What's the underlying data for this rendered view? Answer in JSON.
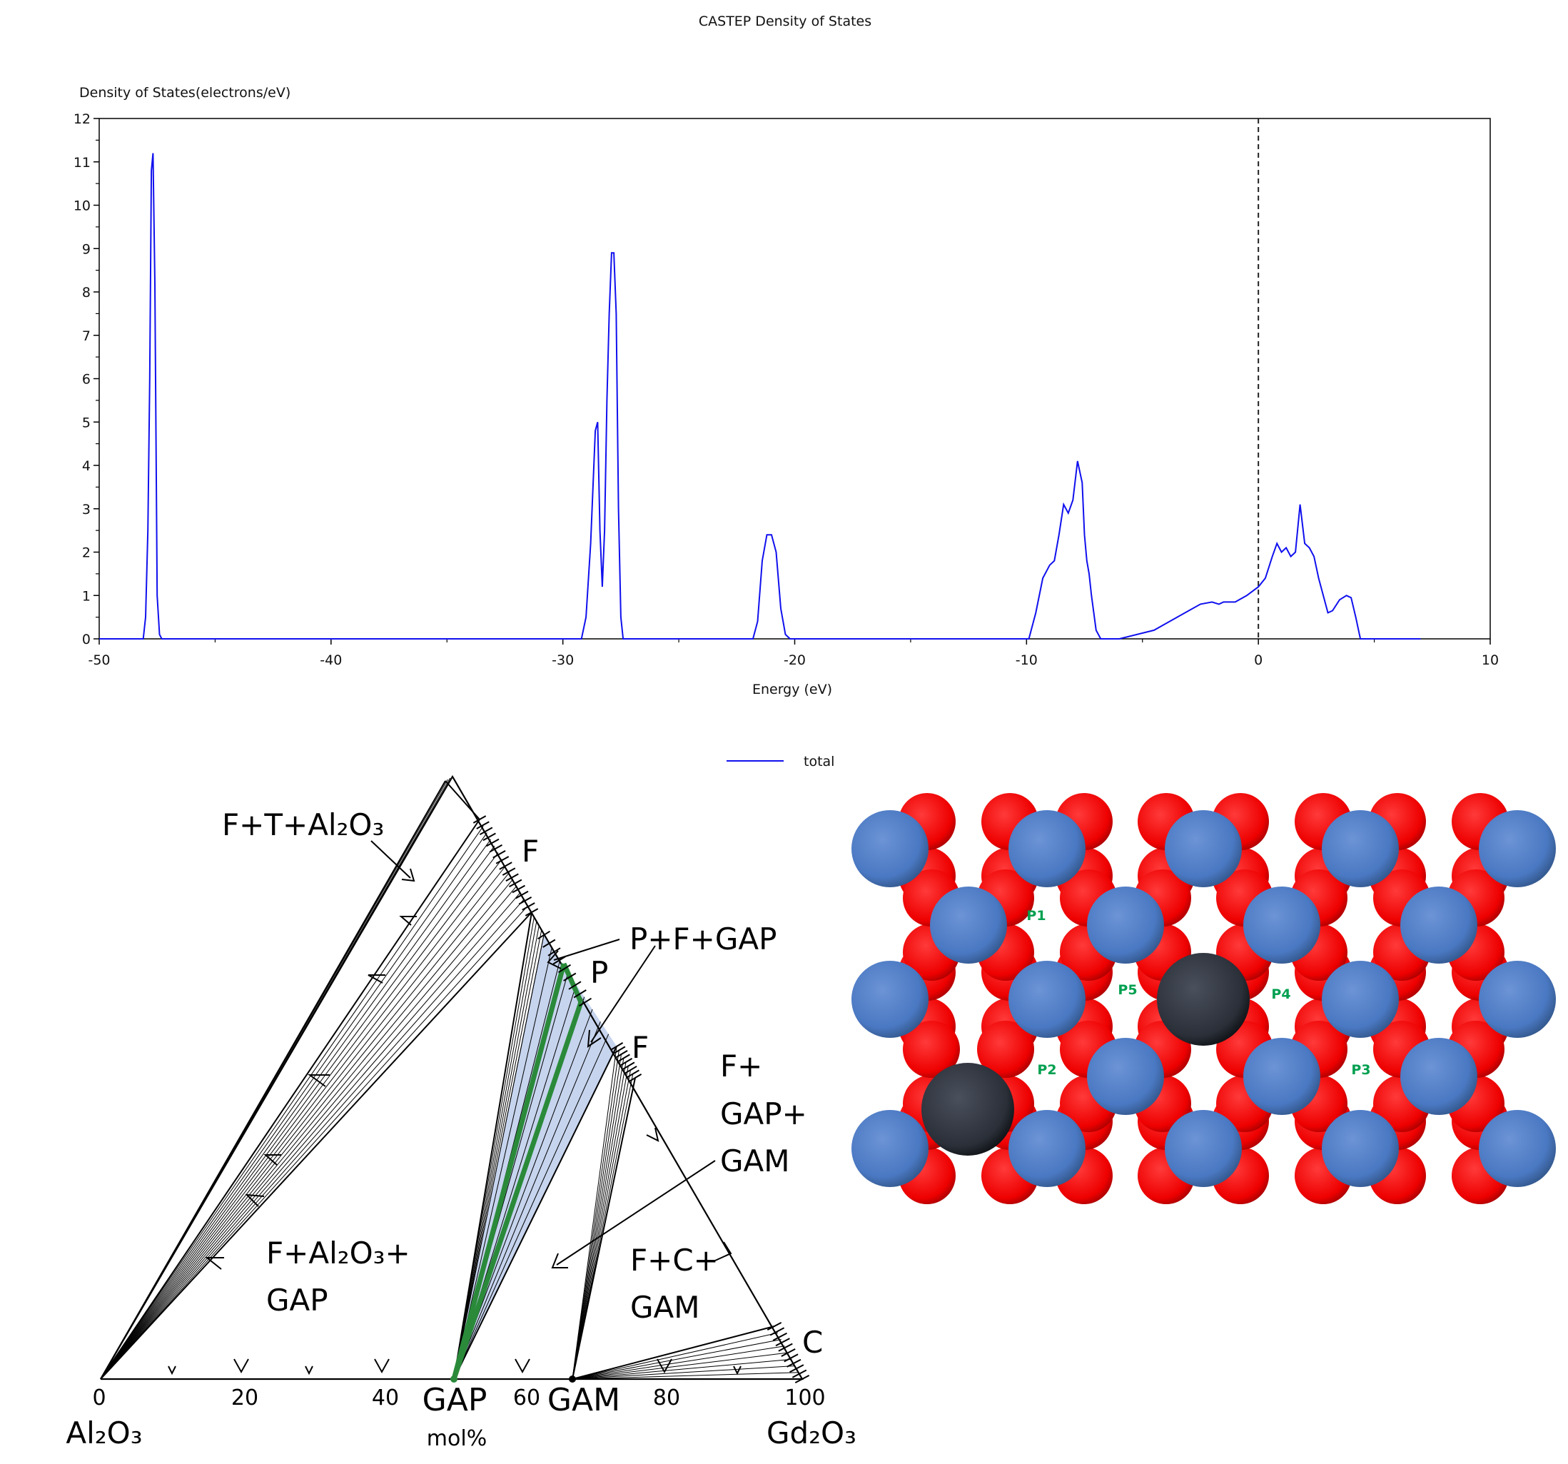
{
  "dos": {
    "title": "CASTEP Density of States",
    "ylabel": "Density of States(electrons/eV)",
    "xlabel": "Energy (eV)",
    "legend_label": "total",
    "fermi_energy": 0,
    "line_color": "#1010ee"
  },
  "chart_data": [
    {
      "type": "line",
      "title": "CASTEP Density of States",
      "xlabel": "Energy (eV)",
      "ylabel": "Density of States(electrons/eV)",
      "xlim": [
        -50,
        10
      ],
      "ylim": [
        0,
        12
      ],
      "xticks": [
        -50,
        -40,
        -30,
        -20,
        -10,
        0,
        10
      ],
      "yticks": [
        0,
        1,
        2,
        3,
        4,
        5,
        6,
        7,
        8,
        9,
        10,
        11,
        12
      ],
      "legend": "bottom-center",
      "series": [
        {
          "name": "total",
          "x": [
            -50,
            -48.1,
            -48.0,
            -47.9,
            -47.82,
            -47.75,
            -47.68,
            -47.6,
            -47.5,
            -47.4,
            -47.3,
            -47.0,
            -29.2,
            -29.0,
            -28.8,
            -28.6,
            -28.5,
            -28.4,
            -28.3,
            -28.2,
            -28.1,
            -28.0,
            -27.9,
            -27.8,
            -27.7,
            -27.6,
            -27.5,
            -27.4,
            -27.3,
            -27.2,
            -27.0,
            -21.8,
            -21.6,
            -21.4,
            -21.2,
            -21.0,
            -20.8,
            -20.6,
            -20.4,
            -20.2,
            -20.0,
            -9.9,
            -9.6,
            -9.3,
            -9.0,
            -8.8,
            -8.6,
            -8.4,
            -8.2,
            -8.0,
            -7.8,
            -7.6,
            -7.5,
            -7.4,
            -7.3,
            -7.2,
            -7.0,
            -6.8,
            -6.6,
            -6.4,
            -6.2,
            -6.0,
            -4.5,
            -4.0,
            -3.5,
            -3.0,
            -2.5,
            -2.0,
            -1.7,
            -1.5,
            -1.0,
            -0.5,
            0.0,
            0.3,
            0.6,
            0.8,
            1.0,
            1.2,
            1.4,
            1.6,
            1.8,
            2.0,
            2.2,
            2.4,
            2.6,
            2.8,
            3.0,
            3.2,
            3.5,
            3.8,
            4.0,
            4.2,
            4.4,
            4.6,
            4.8,
            5.0,
            5.2,
            7.0
          ],
          "values": [
            0,
            0,
            0.5,
            2.5,
            6.0,
            10.8,
            11.2,
            8.2,
            1.0,
            0.1,
            0,
            0,
            0,
            0.5,
            2.2,
            4.8,
            5.0,
            2.5,
            1.2,
            2.5,
            5.5,
            7.5,
            8.9,
            8.9,
            7.5,
            3.0,
            0.5,
            0,
            0,
            0,
            0,
            0,
            0.4,
            1.8,
            2.4,
            2.4,
            2.0,
            0.7,
            0.1,
            0,
            0,
            0,
            0.6,
            1.4,
            1.7,
            1.8,
            2.4,
            3.1,
            2.9,
            3.2,
            4.1,
            3.6,
            2.4,
            1.8,
            1.5,
            1.0,
            0.2,
            0,
            0,
            0,
            0,
            0,
            0.2,
            0.35,
            0.5,
            0.65,
            0.8,
            0.85,
            0.8,
            0.85,
            0.85,
            1.0,
            1.2,
            1.4,
            1.9,
            2.2,
            2.0,
            2.1,
            1.9,
            2.0,
            3.1,
            2.2,
            2.1,
            1.9,
            1.4,
            1.0,
            0.6,
            0.65,
            0.9,
            1.0,
            0.95,
            0.5,
            0,
            0,
            0,
            0,
            0,
            0
          ]
        }
      ]
    },
    {
      "type": "other",
      "title": "",
      "axis_left_label": "Al2O3",
      "axis_right_label": "Gd2O3",
      "axis_unit": "mol%",
      "ticks": [
        0,
        20,
        40,
        60,
        80,
        100
      ],
      "compounds": [
        "GAP",
        "GAM"
      ],
      "phase_labels": [
        "F",
        "P",
        "F",
        "C"
      ],
      "region_labels": [
        "F+T+Al2O3",
        "P+F+GAP",
        "F+Al2O3+GAP",
        "F+GAP+GAM",
        "F+C+GAM"
      ],
      "highlight_fill": "#c6d4ee",
      "highlight_line": "#2a8a3a"
    }
  ],
  "ternary": {
    "tick_labels": [
      "0",
      "20",
      "40",
      "60",
      "80",
      "100"
    ],
    "left_label": "Al₂O₃",
    "right_label": "Gd₂O₃",
    "unit_label": "mol%",
    "gap_label": "GAP",
    "gam_label": "GAM",
    "f_label_top": "F",
    "p_label": "P",
    "f_label_mid": "F",
    "c_label": "C",
    "region_ftal": "F+T+Al₂O₃",
    "region_pfgap": "P+F+GAP",
    "region_fal_line1": "F+Al₂O₃+",
    "region_fal_line2": "GAP",
    "region_fgg_line1": "F+",
    "region_fgg_line2": "GAP+",
    "region_fgg_line3": "GAM",
    "region_fcg_line1": "F+C+",
    "region_fcg_line2": "GAM"
  },
  "lattice": {
    "labels": [
      "P1",
      "P5",
      "P4",
      "P2",
      "P3"
    ],
    "colors": {
      "large_atom": "#4a78c2",
      "small_atom": "#ee0000",
      "dark_atom": "#2a2f38",
      "label": "#00a050"
    }
  }
}
